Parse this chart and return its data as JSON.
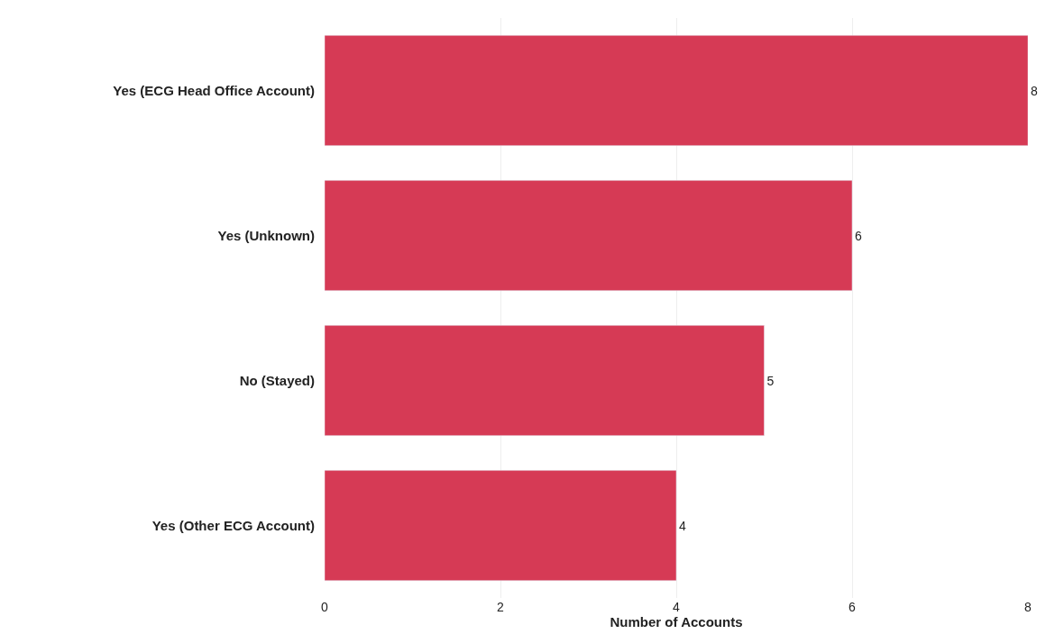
{
  "chart_data": {
    "type": "bar",
    "orientation": "horizontal",
    "categories": [
      "Yes (ECG Head Office Account)",
      "Yes (Unknown)",
      "No (Stayed)",
      "Yes (Other ECG Account)"
    ],
    "values": [
      8,
      6,
      5,
      4
    ],
    "color": "#d63a55",
    "xlabel": "Number of Accounts",
    "xlim": [
      0,
      8
    ],
    "xticks": [
      0,
      2,
      4,
      6,
      8
    ],
    "grid": "x",
    "data_labels": true,
    "legend": false
  }
}
